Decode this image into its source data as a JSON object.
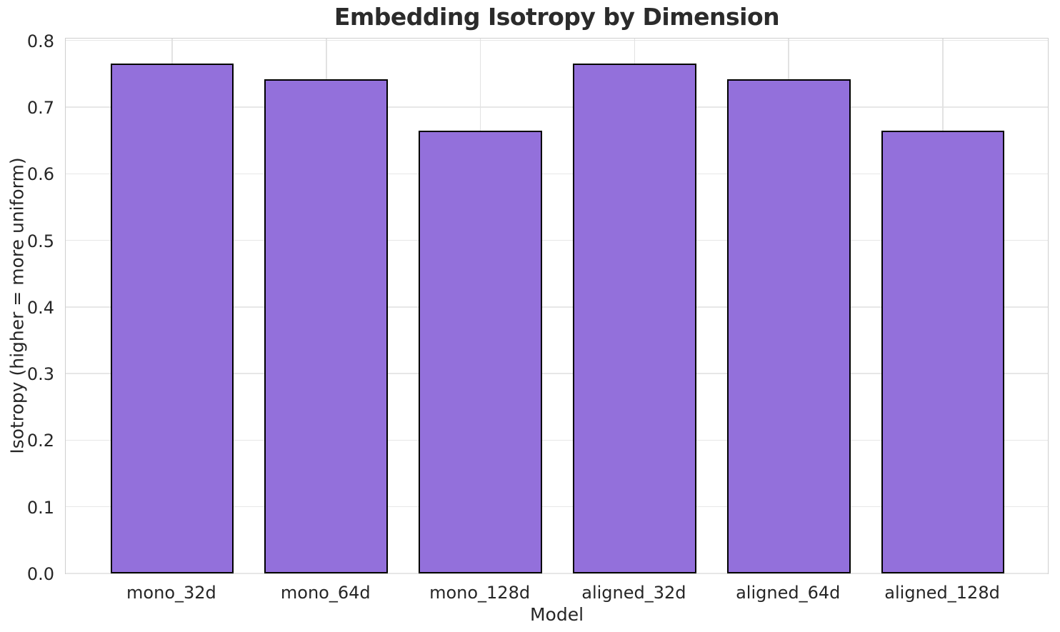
{
  "figure": {
    "background": "#ffffff"
  },
  "chart_data": {
    "type": "bar",
    "title": "Embedding Isotropy by Dimension",
    "xlabel": "Model",
    "ylabel": "Isotropy (higher = more uniform)",
    "categories": [
      "mono_32d",
      "mono_64d",
      "mono_128d",
      "aligned_32d",
      "aligned_64d",
      "aligned_128d"
    ],
    "values": [
      0.765,
      0.742,
      0.665,
      0.765,
      0.742,
      0.665
    ],
    "ylim": [
      0.0,
      0.8
    ],
    "yticks": [
      "0.0",
      "0.1",
      "0.2",
      "0.3",
      "0.4",
      "0.5",
      "0.6",
      "0.7",
      "0.8"
    ],
    "grid": true,
    "legend": null,
    "bar_color": "#9370DB",
    "bar_edge_color": "#000000",
    "grid_color": "#e7e7e7",
    "spine_color": "#cfcfcf",
    "text_color": "#262626"
  }
}
